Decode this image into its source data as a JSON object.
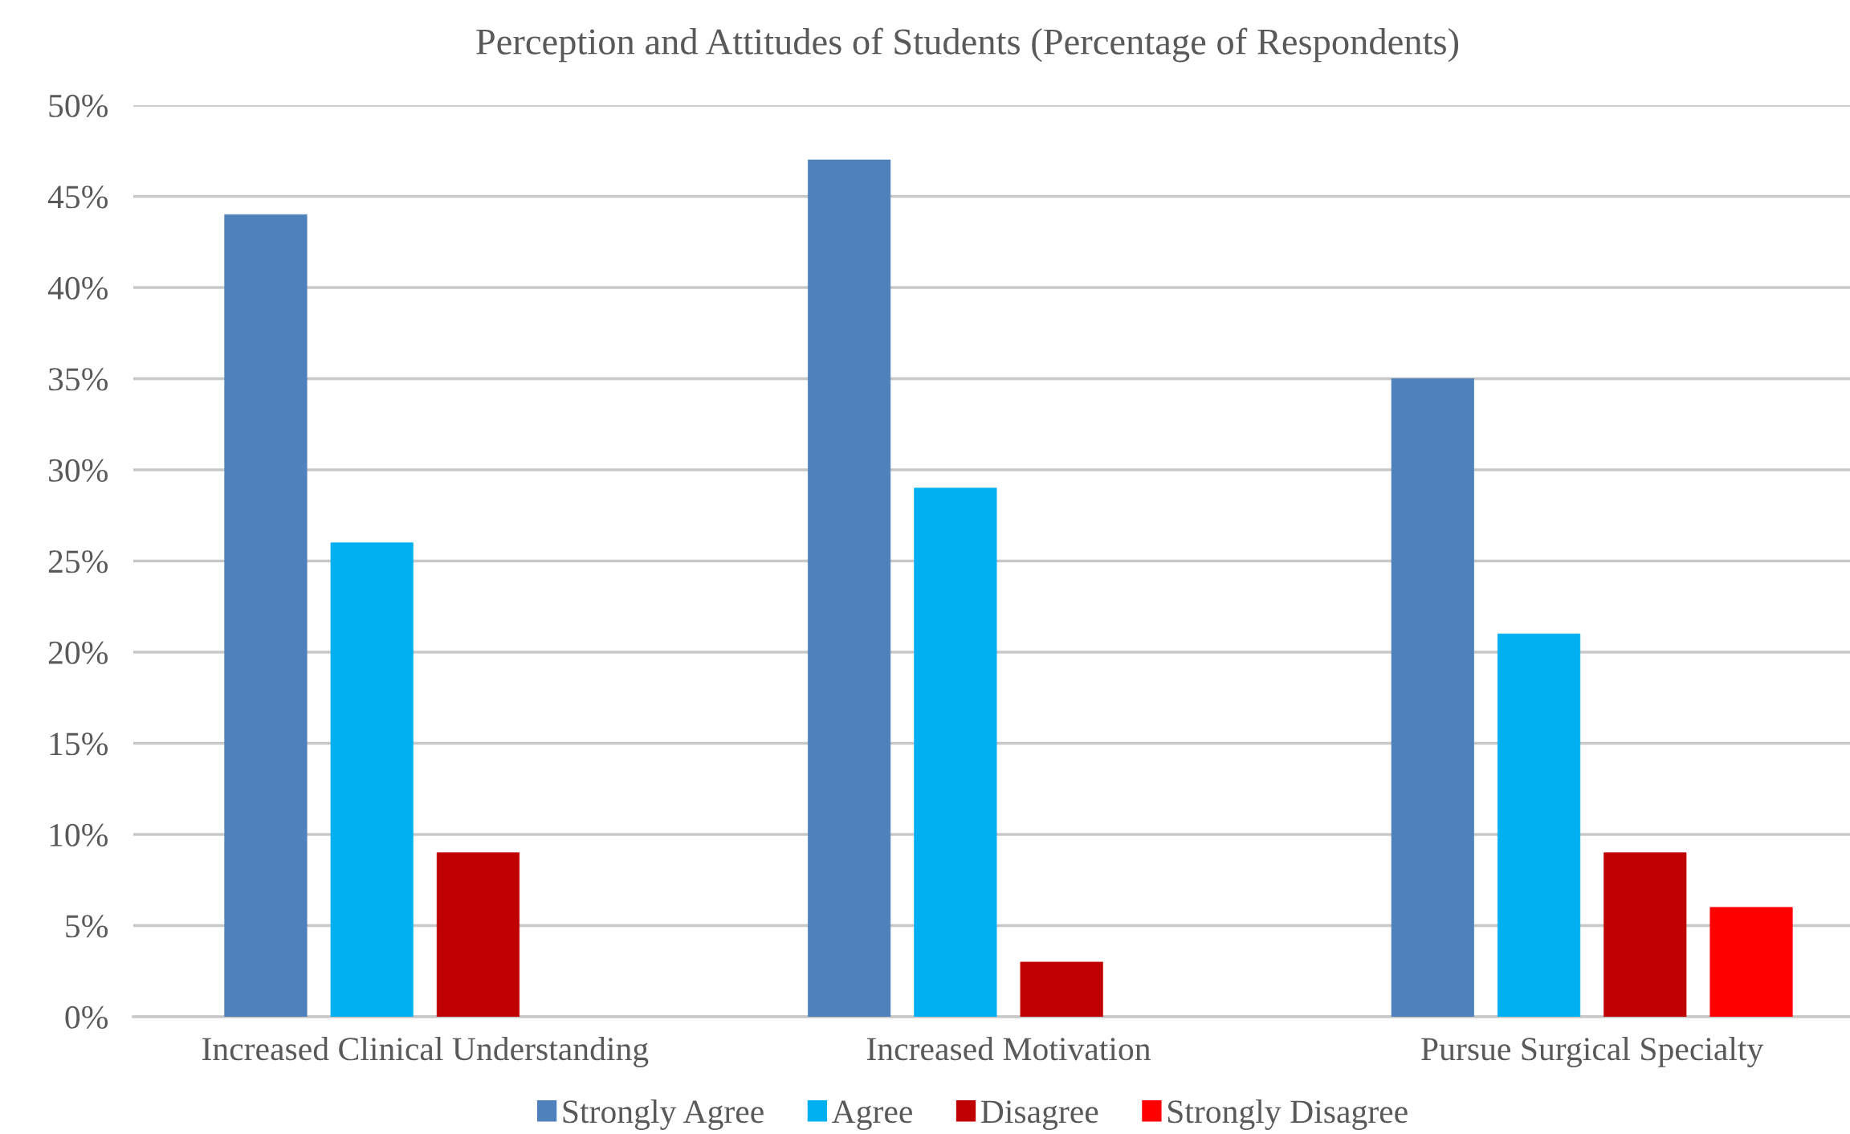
{
  "chart_data": {
    "type": "bar",
    "title": "Perception and Attitudes of Students (Percentage of Respondents)",
    "categories": [
      "Increased Clinical Understanding",
      "Increased Motivation",
      "Pursue Surgical Specialty"
    ],
    "series": [
      {
        "name": "Strongly Agree",
        "color": "#4f81bd",
        "values": [
          44,
          47,
          35
        ]
      },
      {
        "name": "Agree",
        "color": "#00b0f0",
        "values": [
          26,
          29,
          21
        ]
      },
      {
        "name": "Disagree",
        "color": "#c00000",
        "values": [
          9,
          3,
          9
        ]
      },
      {
        "name": "Strongly Disagree",
        "color": "#ff0000",
        "values": [
          null,
          null,
          6
        ]
      }
    ],
    "ylim": [
      0,
      50
    ],
    "yticks": [
      {
        "value": 0,
        "label": "0%"
      },
      {
        "value": 5,
        "label": "5%"
      },
      {
        "value": 10,
        "label": "10%"
      },
      {
        "value": 15,
        "label": "15%"
      },
      {
        "value": 20,
        "label": "20%"
      },
      {
        "value": 25,
        "label": "25%"
      },
      {
        "value": 30,
        "label": "30%"
      },
      {
        "value": 35,
        "label": "35%"
      },
      {
        "value": 40,
        "label": "40%"
      },
      {
        "value": 45,
        "label": "45%"
      },
      {
        "value": 50,
        "label": "50%"
      }
    ],
    "grid": "y",
    "legend": "bottom"
  }
}
